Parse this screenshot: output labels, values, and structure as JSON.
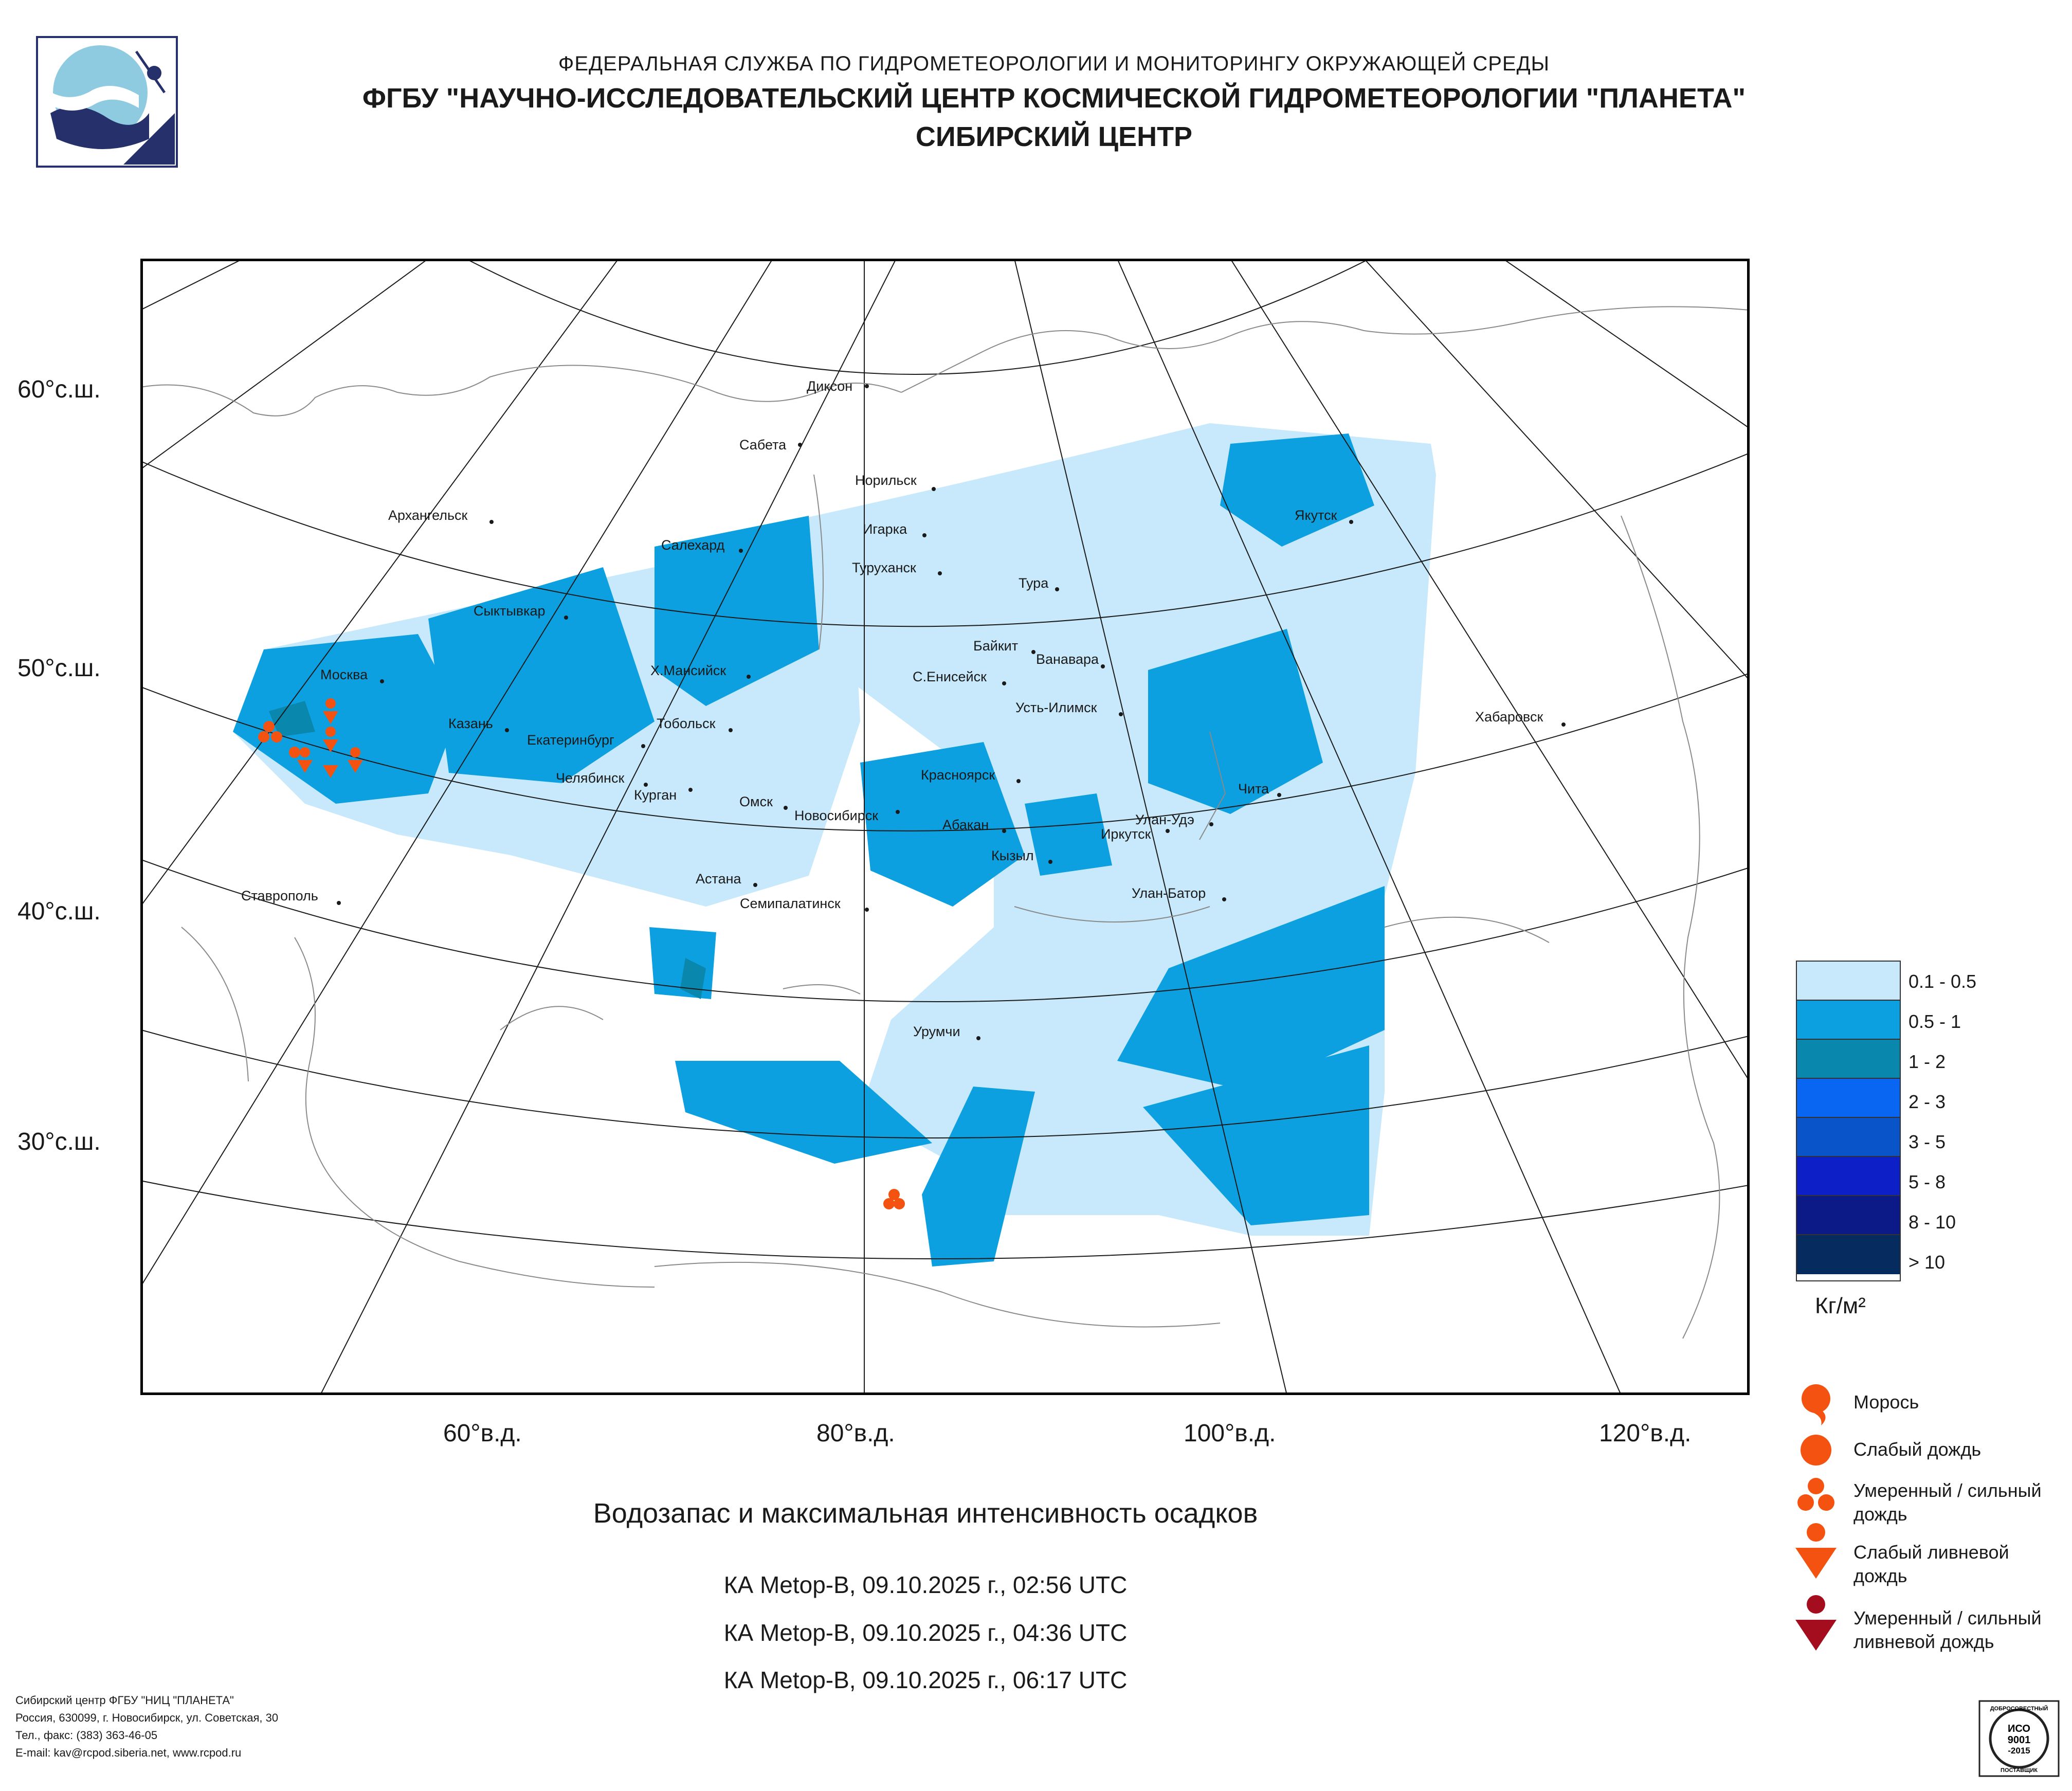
{
  "header": {
    "line1": "ФЕДЕРАЛЬНАЯ СЛУЖБА ПО ГИДРОМЕТЕОРОЛОГИИ И МОНИТОРИНГУ ОКРУЖАЮЩЕЙ СРЕДЫ",
    "line2": "ФГБУ \"НАУЧНО-ИССЛЕДОВАТЕЛЬСКИЙ ЦЕНТР КОСМИЧЕСКОЙ ГИДРОМЕТЕОРОЛОГИИ \"ПЛАНЕТА\"",
    "line3": "СИБИРСКИЙ ЦЕНТР"
  },
  "lat_labels": [
    "60°с.ш.",
    "50°с.ш.",
    "40°с.ш.",
    "30°с.ш."
  ],
  "lon_labels": [
    "60°в.д.",
    "80°в.д.",
    "100°в.д.",
    "120°в.д."
  ],
  "cities": [
    "Диксон",
    "Сабета",
    "Норильск",
    "Архангельск",
    "Якутск",
    "Салехард",
    "Игарка",
    "Туруханск",
    "Тура",
    "Сыктывкар",
    "Байкит",
    "Ванавара",
    "Москва",
    "Х.Мансийск",
    "С.Енисейск",
    "Усть-Илимск",
    "Хабаровск",
    "Казань",
    "Тобольск",
    "Екатеринбург",
    "Челябинск",
    "Курган",
    "Красноярск",
    "Чита",
    "Омск",
    "Новосибирск",
    "Абакан",
    "Улан-Удэ",
    "Иркутск",
    "Кызыл",
    "Астана",
    "Ставрополь",
    "Семипалатинск",
    "Улан-Батор",
    "Урумчи"
  ],
  "legend": {
    "items": [
      {
        "label": "0.1 - 0.5",
        "color": "#c7e9fb"
      },
      {
        "label": "0.5 - 1",
        "color": "#0ca0e0"
      },
      {
        "label": "1 - 2",
        "color": "#0a87ad"
      },
      {
        "label": "2 - 3",
        "color": "#0866f2"
      },
      {
        "label": "3 - 5",
        "color": "#0954c9"
      },
      {
        "label": "5 - 8",
        "color": "#0d1fc7"
      },
      {
        "label": "8 - 10",
        "color": "#0b1a86"
      },
      {
        "label": "> 10",
        "color": "#062b5e"
      }
    ],
    "unit": "Кг/м²"
  },
  "symbols": [
    {
      "label1": "Морось",
      "label2": "",
      "color": "#f35210"
    },
    {
      "label1": "Слабый дождь",
      "label2": "",
      "color": "#f35210"
    },
    {
      "label1": "Умеренный / сильный",
      "label2": "дождь",
      "color": "#f35210"
    },
    {
      "label1": "Слабый ливневой",
      "label2": "дождь",
      "color": "#f35210"
    },
    {
      "label1": "Умеренный / сильный",
      "label2": "ливневой дождь",
      "color": "#a30d1e"
    }
  ],
  "caption": "Водозапас и максимальная интенсивность осадков",
  "satellite_passes": [
    "КА Metop-B, 09.10.2025 г., 02:56 UTC",
    "КА Metop-B, 09.10.2025 г., 04:36 UTC",
    "КА Metop-B, 09.10.2025 г., 06:17 UTC"
  ],
  "footer": {
    "line1": "Сибирский центр ФГБУ \"НИЦ \"ПЛАНЕТА\"",
    "line2": "Россия, 630099, г. Новосибирск, ул. Советская, 30",
    "line3": "Тел., факс: (383) 363-46-05",
    "line4": "E-mail: kav@rcpod.siberia.net, www.rcpod.ru"
  },
  "iso_badge": {
    "top": "ДОБРОСОВЕСТНЫЙ",
    "l1": "ИСО",
    "l2": "9001",
    "l3": "-2015",
    "bottom": "ПОСТАВЩИК"
  }
}
